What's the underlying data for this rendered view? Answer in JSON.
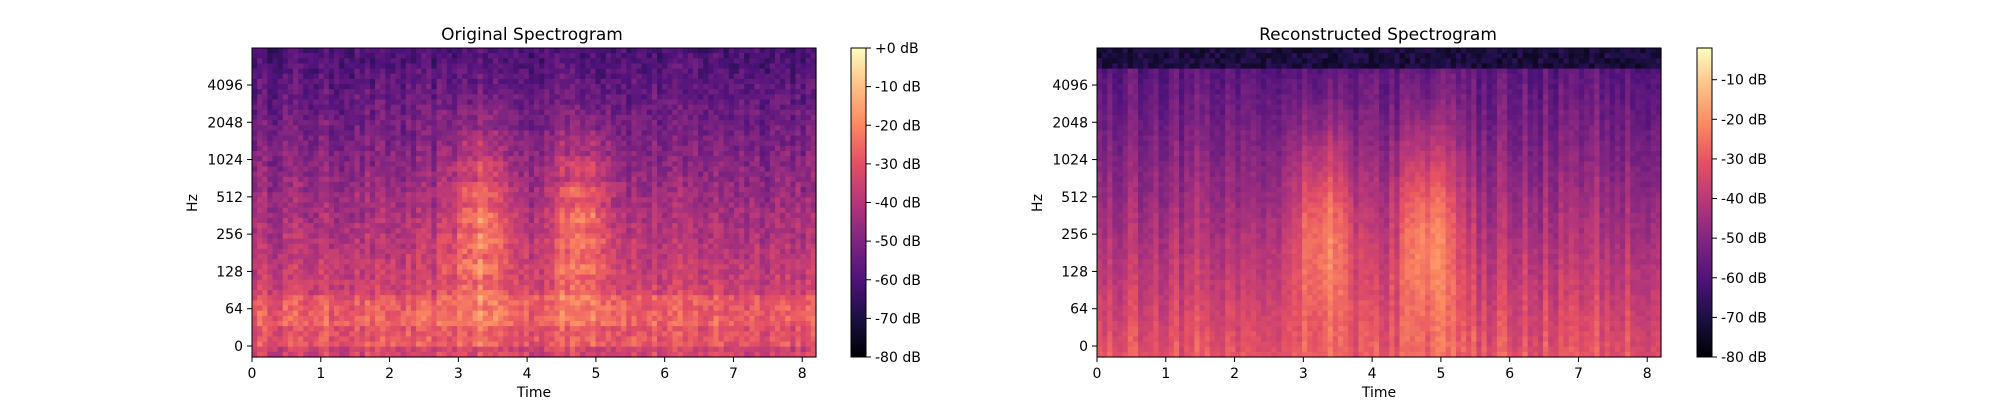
{
  "chart_data": [
    {
      "type": "heatmap",
      "title": "Original Spectrogram",
      "xlabel": "Time",
      "ylabel": "Hz",
      "xlim": [
        0,
        8.2
      ],
      "x_ticks": [
        0,
        1,
        2,
        3,
        4,
        5,
        6,
        7,
        8
      ],
      "y_ticks": [
        "0",
        "64",
        "128",
        "256",
        "512",
        "1024",
        "2048",
        "4096"
      ],
      "colormap": "magma",
      "color_range_db": [
        -80,
        0
      ],
      "colorbar_ticks": [
        "+0 dB",
        "-10 dB",
        "-20 dB",
        "-30 dB",
        "-40 dB",
        "-50 dB",
        "-60 dB",
        "-70 dB",
        "-80 dB"
      ],
      "grid": false
    },
    {
      "type": "heatmap",
      "title": "Reconstructed Spectrogram",
      "xlabel": "Time",
      "ylabel": "Hz",
      "xlim": [
        0,
        8.2
      ],
      "x_ticks": [
        0,
        1,
        2,
        3,
        4,
        5,
        6,
        7,
        8
      ],
      "y_ticks": [
        "0",
        "64",
        "128",
        "256",
        "512",
        "1024",
        "2048",
        "4096"
      ],
      "colormap": "magma",
      "color_range_db": [
        -80,
        -2
      ],
      "colorbar_ticks": [
        "-10 dB",
        "-20 dB",
        "-30 dB",
        "-40 dB",
        "-50 dB",
        "-60 dB",
        "-70 dB",
        "-80 dB"
      ],
      "grid": false
    }
  ]
}
